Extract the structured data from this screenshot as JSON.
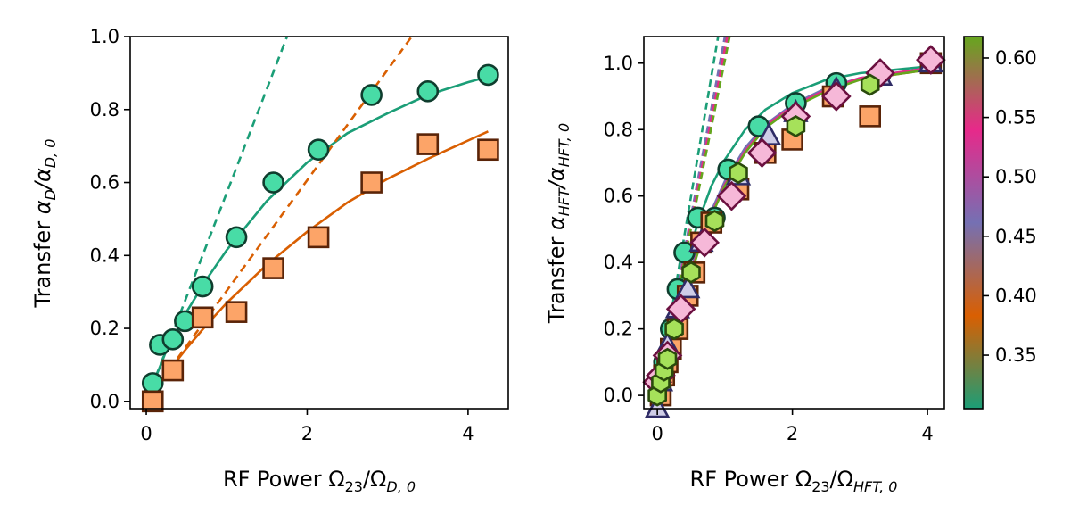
{
  "chart_data": [
    {
      "type": "scatter",
      "panel": "left",
      "xlabel": {
        "prefix": "RF Power ",
        "main": "Ω",
        "sub1": "23",
        "mid": "/Ω",
        "sub2": "D, 0"
      },
      "ylabel": {
        "prefix": "Transfer ",
        "main": "α",
        "sub1": "D",
        "mid": "/α",
        "sub2": "D, 0"
      },
      "xlim": [
        -0.2,
        4.5
      ],
      "ylim": [
        -0.02,
        1.0
      ],
      "xticks": [
        0,
        2,
        4
      ],
      "xtick_labels": [
        "0",
        "2",
        "4"
      ],
      "yticks": [
        0.0,
        0.2,
        0.4,
        0.6,
        0.8,
        1.0
      ],
      "ytick_labels": [
        "0.0",
        "0.2",
        "0.4",
        "0.6",
        "0.8",
        "1.0"
      ],
      "grid": false,
      "series": [
        {
          "marker": "circle",
          "color": "#1b9e77",
          "face": "#48dca6",
          "edge": "#0f3d2e",
          "points": [
            [
              0.08,
              0.05
            ],
            [
              0.17,
              0.155
            ],
            [
              0.33,
              0.17
            ],
            [
              0.48,
              0.22
            ],
            [
              0.7,
              0.315
            ],
            [
              1.12,
              0.45
            ],
            [
              1.58,
              0.6
            ],
            [
              2.14,
              0.69
            ],
            [
              2.8,
              0.84
            ],
            [
              3.5,
              0.85
            ],
            [
              4.25,
              0.895
            ]
          ],
          "fit_curve": [
            [
              0,
              0
            ],
            [
              0.25,
              0.14
            ],
            [
              0.5,
              0.245
            ],
            [
              0.75,
              0.335
            ],
            [
              1.0,
              0.415
            ],
            [
              1.5,
              0.55
            ],
            [
              2.0,
              0.655
            ],
            [
              2.5,
              0.735
            ],
            [
              3.0,
              0.79
            ],
            [
              3.5,
              0.84
            ],
            [
              4.0,
              0.875
            ],
            [
              4.25,
              0.89
            ]
          ],
          "linear_fit": [
            [
              0,
              0
            ],
            [
              1.75,
              1.0
            ]
          ]
        },
        {
          "marker": "square",
          "color": "#d95f02",
          "face": "#fca468",
          "edge": "#5a2408",
          "points": [
            [
              0.08,
              0.0
            ],
            [
              0.33,
              0.085
            ],
            [
              0.7,
              0.23
            ],
            [
              1.12,
              0.245
            ],
            [
              1.58,
              0.365
            ],
            [
              2.14,
              0.45
            ],
            [
              2.8,
              0.6
            ],
            [
              3.5,
              0.705
            ],
            [
              4.25,
              0.69
            ]
          ],
          "fit_curve": [
            [
              0,
              0
            ],
            [
              0.25,
              0.075
            ],
            [
              0.5,
              0.145
            ],
            [
              0.75,
              0.21
            ],
            [
              1.0,
              0.27
            ],
            [
              1.5,
              0.375
            ],
            [
              2.0,
              0.465
            ],
            [
              2.5,
              0.545
            ],
            [
              3.0,
              0.61
            ],
            [
              3.5,
              0.665
            ],
            [
              4.0,
              0.715
            ],
            [
              4.25,
              0.74
            ]
          ],
          "linear_fit": [
            [
              0,
              0
            ],
            [
              3.3,
              1.0
            ]
          ]
        }
      ]
    },
    {
      "type": "scatter",
      "panel": "right",
      "xlabel": {
        "prefix": "RF Power ",
        "main": "Ω",
        "sub1": "23",
        "mid": "/Ω",
        "sub2": "HFT, 0"
      },
      "ylabel": {
        "prefix": "Transfer ",
        "main": "α",
        "sub1": "HFT",
        "mid": "/α",
        "sub2": "HFT, 0"
      },
      "xlim": [
        -0.2,
        4.25
      ],
      "ylim": [
        -0.04,
        1.08
      ],
      "xticks": [
        0,
        2,
        4
      ],
      "xtick_labels": [
        "0",
        "2",
        "4"
      ],
      "yticks": [
        0.0,
        0.2,
        0.4,
        0.6,
        0.8,
        1.0
      ],
      "ytick_labels": [
        "0.0",
        "0.2",
        "0.4",
        "0.6",
        "0.8",
        "1.0"
      ],
      "grid": false,
      "colorbar": {
        "min": 0.305,
        "max": 0.618,
        "ticks": [
          0.35,
          0.4,
          0.45,
          0.5,
          0.55,
          0.6
        ],
        "tick_labels": [
          "0.35",
          "0.40",
          "0.45",
          "0.50",
          "0.55",
          "0.60"
        ],
        "gradient": [
          "#1b9e77",
          "#d95f02",
          "#7570b3",
          "#e7298a",
          "#66a61e"
        ]
      },
      "fit_curves": [
        {
          "color": "#1b9e77",
          "curve": [
            [
              0,
              0
            ],
            [
              0.2,
              0.2
            ],
            [
              0.4,
              0.38
            ],
            [
              0.6,
              0.52
            ],
            [
              0.8,
              0.63
            ],
            [
              1.0,
              0.71
            ],
            [
              1.3,
              0.8
            ],
            [
              1.6,
              0.86
            ],
            [
              2.0,
              0.91
            ],
            [
              2.5,
              0.95
            ],
            [
              3.0,
              0.97
            ],
            [
              4.0,
              0.99
            ]
          ],
          "linear": [
            [
              0,
              0
            ],
            [
              0.9,
              1.08
            ]
          ]
        },
        {
          "color": "#d95f02",
          "curve": [
            [
              0,
              0
            ],
            [
              0.2,
              0.16
            ],
            [
              0.4,
              0.31
            ],
            [
              0.6,
              0.44
            ],
            [
              0.8,
              0.55
            ],
            [
              1.0,
              0.64
            ],
            [
              1.3,
              0.74
            ],
            [
              1.6,
              0.81
            ],
            [
              2.0,
              0.87
            ],
            [
              2.5,
              0.92
            ],
            [
              3.0,
              0.95
            ],
            [
              4.0,
              0.98
            ]
          ],
          "linear": [
            [
              0,
              0
            ],
            [
              1.03,
              1.08
            ]
          ]
        },
        {
          "color": "#7570b3",
          "curve": [
            [
              0,
              0
            ],
            [
              0.2,
              0.165
            ],
            [
              0.4,
              0.315
            ],
            [
              0.6,
              0.445
            ],
            [
              0.8,
              0.555
            ],
            [
              1.0,
              0.645
            ],
            [
              1.3,
              0.745
            ],
            [
              1.6,
              0.815
            ],
            [
              2.0,
              0.875
            ],
            [
              2.5,
              0.925
            ],
            [
              3.0,
              0.955
            ],
            [
              4.0,
              0.985
            ]
          ],
          "linear": [
            [
              0,
              0
            ],
            [
              1.0,
              1.08
            ]
          ]
        },
        {
          "color": "#e7298a",
          "curve": [
            [
              0,
              0
            ],
            [
              0.2,
              0.16
            ],
            [
              0.4,
              0.305
            ],
            [
              0.6,
              0.435
            ],
            [
              0.8,
              0.545
            ],
            [
              1.0,
              0.635
            ],
            [
              1.3,
              0.735
            ],
            [
              1.6,
              0.81
            ],
            [
              2.0,
              0.87
            ],
            [
              2.5,
              0.92
            ],
            [
              3.0,
              0.955
            ],
            [
              4.0,
              0.985
            ]
          ],
          "linear": [
            [
              0,
              0
            ],
            [
              1.04,
              1.08
            ]
          ]
        },
        {
          "color": "#66a61e",
          "curve": [
            [
              0,
              0
            ],
            [
              0.2,
              0.155
            ],
            [
              0.4,
              0.3
            ],
            [
              0.6,
              0.43
            ],
            [
              0.8,
              0.54
            ],
            [
              1.0,
              0.63
            ],
            [
              1.3,
              0.73
            ],
            [
              1.6,
              0.805
            ],
            [
              2.0,
              0.865
            ],
            [
              2.5,
              0.915
            ],
            [
              3.0,
              0.95
            ],
            [
              4.0,
              0.98
            ]
          ],
          "linear": [
            [
              0,
              0
            ],
            [
              1.07,
              1.08
            ]
          ]
        }
      ],
      "series": [
        {
          "marker": "circle",
          "face": "#48dca6",
          "edge": "#0f3d2e",
          "points": [
            [
              0.05,
              0.04
            ],
            [
              0.1,
              0.1
            ],
            [
              0.2,
              0.2
            ],
            [
              0.3,
              0.32
            ],
            [
              0.4,
              0.43
            ],
            [
              0.6,
              0.535
            ],
            [
              0.85,
              0.535
            ],
            [
              1.05,
              0.68
            ],
            [
              1.5,
              0.81
            ],
            [
              2.05,
              0.88
            ],
            [
              2.65,
              0.94
            ],
            [
              3.3,
              0.965
            ],
            [
              4.05,
              1.0
            ]
          ]
        },
        {
          "marker": "square",
          "face": "#fca468",
          "edge": "#5a2408",
          "points": [
            [
              0.05,
              0.0
            ],
            [
              0.1,
              0.06
            ],
            [
              0.15,
              0.1
            ],
            [
              0.2,
              0.14
            ],
            [
              0.3,
              0.2
            ],
            [
              0.45,
              0.3
            ],
            [
              0.55,
              0.37
            ],
            [
              0.65,
              0.46
            ],
            [
              0.8,
              0.52
            ],
            [
              1.2,
              0.62
            ],
            [
              1.6,
              0.73
            ],
            [
              2.0,
              0.77
            ],
            [
              2.6,
              0.9
            ],
            [
              3.15,
              0.84
            ],
            [
              4.05,
              1.0
            ]
          ]
        },
        {
          "marker": "triangle",
          "face": "#cfcde8",
          "edge": "#2f2c66",
          "points": [
            [
              0.0,
              -0.04
            ],
            [
              0.05,
              0.04
            ],
            [
              0.15,
              0.15
            ],
            [
              0.3,
              0.26
            ],
            [
              0.45,
              0.32
            ],
            [
              0.65,
              0.46
            ],
            [
              1.2,
              0.66
            ],
            [
              1.65,
              0.78
            ],
            [
              2.05,
              0.85
            ],
            [
              2.65,
              0.92
            ],
            [
              3.3,
              0.96
            ],
            [
              4.05,
              1.0
            ]
          ]
        },
        {
          "marker": "diamond",
          "face": "#f6b8d8",
          "edge": "#6b1040",
          "points": [
            [
              0.0,
              0.04
            ],
            [
              0.05,
              0.06
            ],
            [
              0.15,
              0.12
            ],
            [
              0.35,
              0.26
            ],
            [
              0.7,
              0.46
            ],
            [
              1.1,
              0.6
            ],
            [
              1.55,
              0.73
            ],
            [
              2.05,
              0.84
            ],
            [
              2.65,
              0.9
            ],
            [
              3.3,
              0.97
            ],
            [
              4.05,
              1.01
            ]
          ]
        },
        {
          "marker": "hexagon",
          "face": "#a6e15a",
          "edge": "#2a4a0c",
          "points": [
            [
              0.0,
              0.0
            ],
            [
              0.05,
              0.04
            ],
            [
              0.1,
              0.075
            ],
            [
              0.15,
              0.11
            ],
            [
              0.25,
              0.2
            ],
            [
              0.5,
              0.37
            ],
            [
              0.85,
              0.525
            ],
            [
              1.2,
              0.67
            ],
            [
              2.05,
              0.81
            ],
            [
              3.15,
              0.935
            ]
          ]
        }
      ]
    }
  ]
}
